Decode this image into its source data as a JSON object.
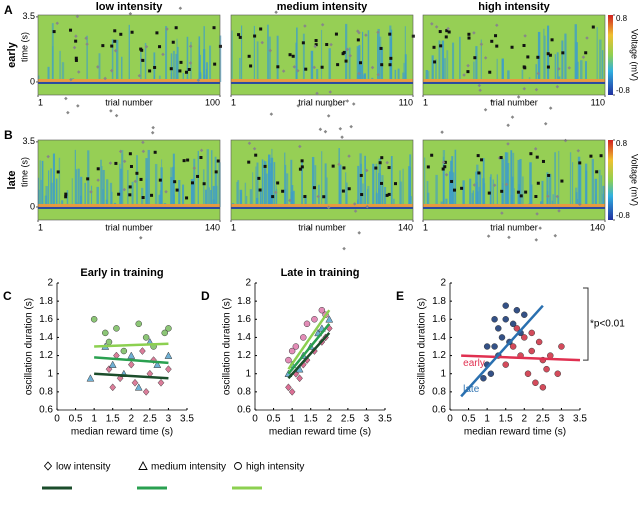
{
  "chart_data": [
    {
      "type": "heatmap",
      "panel": "A",
      "row_label": "early",
      "title": "low intensity",
      "ylabel": "time (s)",
      "xlabel": "trial number",
      "xlim": [
        1,
        100
      ],
      "xticks": [
        1,
        100
      ],
      "ylim": [
        -0.7,
        3.6
      ],
      "yticks": [
        0,
        3.5
      ]
    },
    {
      "type": "heatmap",
      "title": "medium intensity",
      "xlabel": "trial number",
      "xlim": [
        1,
        110
      ],
      "xticks": [
        1,
        110
      ],
      "ylim": [
        -0.7,
        3.6
      ]
    },
    {
      "type": "heatmap",
      "title": "high intensity",
      "xlabel": "trial number",
      "xlim": [
        1,
        110
      ],
      "xticks": [
        1,
        110
      ],
      "ylim": [
        -0.7,
        3.6
      ],
      "colorbar": {
        "label": "Voltage (mV)",
        "clim": [
          -0.8,
          0.8
        ],
        "ticks": [
          0.8,
          -0.8
        ]
      }
    },
    {
      "type": "heatmap",
      "panel": "B",
      "row_label": "late",
      "ylabel": "time (s)",
      "xlabel": "trial number",
      "xlim": [
        1,
        140
      ],
      "xticks": [
        1,
        140
      ],
      "ylim": [
        -0.7,
        3.6
      ],
      "yticks": [
        0,
        3.5
      ]
    },
    {
      "type": "heatmap",
      "xlabel": "trial number",
      "xlim": [
        1,
        140
      ],
      "xticks": [
        1,
        140
      ],
      "ylim": [
        -0.7,
        3.6
      ]
    },
    {
      "type": "heatmap",
      "xlabel": "trial number",
      "xlim": [
        1,
        140
      ],
      "xticks": [
        1,
        140
      ],
      "ylim": [
        -0.7,
        3.6
      ],
      "colorbar": {
        "label": "Voltage (mV)",
        "clim": [
          -0.8,
          0.8
        ],
        "ticks": [
          0.8,
          -0.8
        ]
      }
    },
    {
      "type": "scatter",
      "panel": "C",
      "title": "Early in training",
      "xlabel": "median reward time (s)",
      "ylabel": "oscillation duration (s)",
      "xlim": [
        0,
        3.5
      ],
      "xticks": [
        0,
        0.5,
        1,
        1.5,
        2,
        2.5,
        3,
        3.5
      ],
      "ylim": [
        0.6,
        2
      ],
      "yticks": [
        0.6,
        0.8,
        1,
        1.2,
        1.4,
        1.6,
        1.8,
        2
      ],
      "series": [
        {
          "name": "low intensity",
          "marker": "diamond",
          "color": "#d87090",
          "fit_color": "#1b4d2b",
          "x": [
            1.4,
            1.5,
            1.6,
            1.7,
            2.0,
            2.1,
            2.3,
            2.4,
            2.5,
            2.6,
            2.8,
            3.0
          ],
          "values": [
            1.05,
            0.85,
            1.2,
            0.95,
            1.1,
            0.9,
            1.25,
            0.8,
            1.0,
            1.15,
            0.9,
            1.05
          ],
          "fit": {
            "x": [
              1,
              3
            ],
            "values": [
              1.0,
              0.95
            ]
          }
        },
        {
          "name": "medium intensity",
          "marker": "triangle",
          "color": "#60a8d0",
          "fit_color": "#2aa050",
          "x": [
            0.9,
            1.3,
            1.5,
            1.8,
            2.0,
            2.2,
            2.5,
            2.7,
            3.0
          ],
          "values": [
            0.95,
            1.3,
            1.1,
            1.0,
            1.2,
            0.85,
            1.35,
            1.1,
            1.2
          ],
          "fit": {
            "x": [
              1,
              3
            ],
            "values": [
              1.18,
              1.12
            ]
          }
        },
        {
          "name": "high intensity",
          "marker": "circle",
          "color": "#80c068",
          "fit_color": "#8cd050",
          "x": [
            1.0,
            1.3,
            1.4,
            1.6,
            1.8,
            2.2,
            2.4,
            2.6,
            2.9,
            3.0
          ],
          "values": [
            1.6,
            1.45,
            1.35,
            1.5,
            1.25,
            1.55,
            1.4,
            1.3,
            1.45,
            1.5
          ],
          "fit": {
            "x": [
              1,
              3
            ],
            "values": [
              1.3,
              1.33
            ]
          }
        }
      ]
    },
    {
      "type": "scatter",
      "panel": "D",
      "title": "Late in training",
      "xlabel": "median reward time (s)",
      "ylabel": "oscillation duration (s)",
      "xlim": [
        0,
        3.5
      ],
      "xticks": [
        0,
        0.5,
        1,
        1.5,
        2,
        2.5,
        3,
        3.5
      ],
      "ylim": [
        0.6,
        2
      ],
      "yticks": [
        0.6,
        0.8,
        1,
        1.2,
        1.4,
        1.6,
        1.8,
        2
      ],
      "series": [
        {
          "marker": "diamond",
          "color": "#d8608a",
          "fit_color": "#1b4d2b",
          "x": [
            0.9,
            1.0,
            1.1,
            1.2,
            1.3,
            1.4,
            1.6,
            1.8,
            1.9,
            2.0
          ],
          "values": [
            0.85,
            0.8,
            1.0,
            0.95,
            1.1,
            1.15,
            1.25,
            1.35,
            1.4,
            1.5
          ],
          "fit": {
            "x": [
              0.9,
              2
            ],
            "values": [
              0.95,
              1.45
            ]
          }
        },
        {
          "marker": "triangle",
          "color": "#60a8d0",
          "fit_color": "#2aa050",
          "x": [
            0.9,
            1.0,
            1.2,
            1.3,
            1.5,
            1.7,
            1.8,
            2.0
          ],
          "values": [
            1.0,
            1.1,
            1.05,
            1.2,
            1.3,
            1.45,
            1.5,
            1.6
          ],
          "fit": {
            "x": [
              0.9,
              2
            ],
            "values": [
              1.0,
              1.55
            ]
          }
        },
        {
          "marker": "circle",
          "color": "#e080b0",
          "fit_color": "#8cd050",
          "x": [
            0.9,
            1.0,
            1.1,
            1.3,
            1.4,
            1.6,
            1.8,
            1.9
          ],
          "values": [
            1.15,
            1.25,
            1.3,
            1.4,
            1.55,
            1.6,
            1.7,
            1.65
          ],
          "fit": {
            "x": [
              0.9,
              2
            ],
            "values": [
              1.05,
              1.7
            ]
          }
        }
      ]
    },
    {
      "type": "scatter",
      "panel": "E",
      "xlabel": "median reward time (s)",
      "ylabel": "oscillation duration (s)",
      "annotation": "*p<0.01",
      "xlim": [
        0,
        3.5
      ],
      "xticks": [
        0,
        0.5,
        1,
        1.5,
        2,
        2.5,
        3,
        3.5
      ],
      "ylim": [
        0.6,
        2
      ],
      "yticks": [
        0.6,
        0.8,
        1,
        1.2,
        1.4,
        1.6,
        1.8,
        2
      ],
      "series": [
        {
          "name": "early",
          "marker": "circle",
          "color": "#d0384a",
          "fit_color": "#e03050",
          "x": [
            1.5,
            1.7,
            1.9,
            2.0,
            2.1,
            2.2,
            2.3,
            2.4,
            2.5,
            2.6,
            2.7,
            2.9,
            3.0,
            1.8,
            2.2,
            2.5
          ],
          "values": [
            1.1,
            1.3,
            1.2,
            1.4,
            1.0,
            1.25,
            0.9,
            1.35,
            1.15,
            1.05,
            1.2,
            1.0,
            1.3,
            1.5,
            1.45,
            0.85
          ],
          "fit": {
            "x": [
              0.3,
              3.5
            ],
            "values": [
              1.2,
              1.15
            ]
          }
        },
        {
          "name": "late",
          "marker": "circle",
          "color": "#1f3f7a",
          "fit_color": "#2a70b0",
          "x": [
            0.9,
            1.0,
            1.1,
            1.2,
            1.3,
            1.3,
            1.4,
            1.5,
            1.6,
            1.7,
            1.8,
            1.9,
            2.0,
            1.0,
            1.2,
            1.5
          ],
          "values": [
            0.95,
            1.1,
            1.0,
            1.3,
            1.2,
            1.5,
            1.4,
            1.6,
            1.35,
            1.55,
            1.7,
            1.45,
            1.65,
            1.3,
            1.6,
            1.75
          ],
          "fit": {
            "x": [
              0.3,
              2.5
            ],
            "values": [
              0.75,
              1.75
            ]
          }
        }
      ]
    }
  ]
}
